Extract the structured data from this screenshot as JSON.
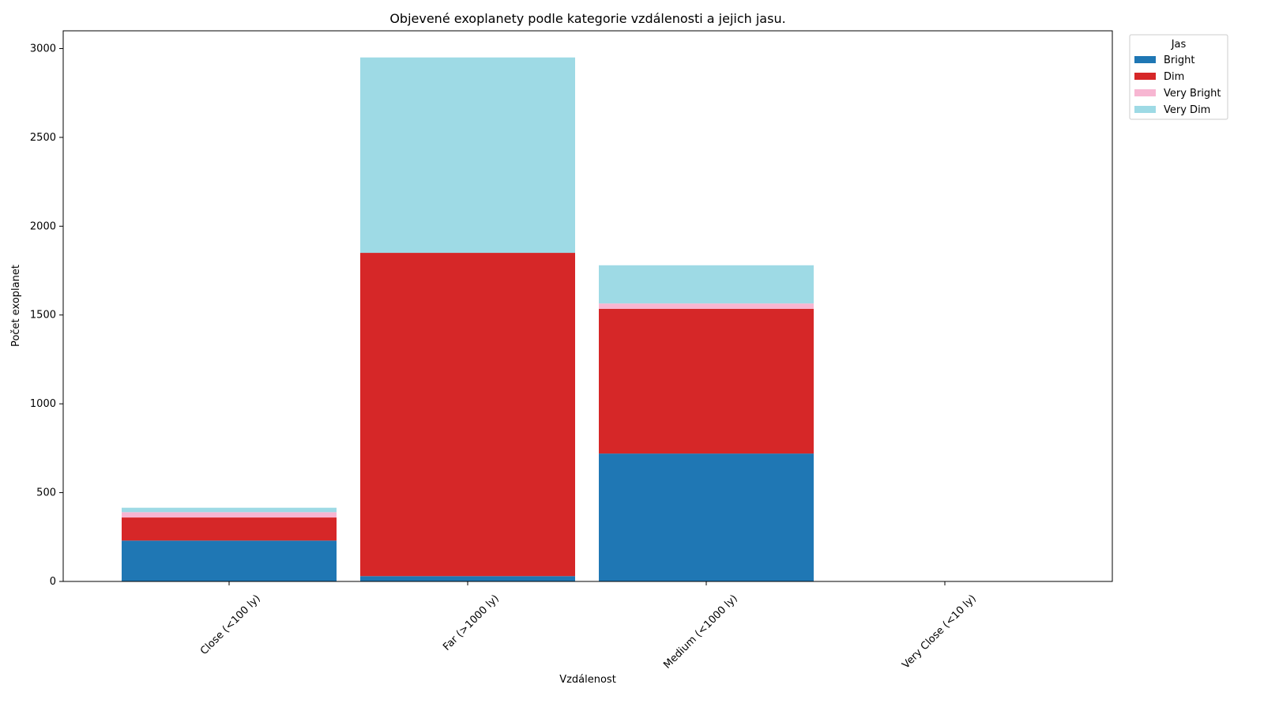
{
  "chart_data": {
    "type": "bar",
    "stacked": true,
    "title": "Objevené exoplanety podle kategorie vzdálenosti a jejich jasu.",
    "xlabel": "Vzdálenost",
    "ylabel": "Počet exoplanet",
    "categories": [
      "Close (<100 ly)",
      "Far (>1000 ly)",
      "Medium (<1000 ly)",
      "Very Close (<10 ly)"
    ],
    "ylim": [
      0,
      3100
    ],
    "yticks": [
      0,
      500,
      1000,
      1500,
      2000,
      2500,
      3000
    ],
    "grid": false,
    "legend": {
      "title": "Jas",
      "placement": "outside top-right"
    },
    "series": [
      {
        "name": "Bright",
        "color": "#1f77b4",
        "values": [
          230,
          30,
          720,
          0
        ]
      },
      {
        "name": "Dim",
        "color": "#d62728",
        "values": [
          130,
          1820,
          815,
          0
        ]
      },
      {
        "name": "Very Bright",
        "color": "#f7b6d2",
        "values": [
          30,
          0,
          30,
          0
        ]
      },
      {
        "name": "Very Dim",
        "color": "#9edae5",
        "values": [
          25,
          1100,
          215,
          0
        ]
      }
    ]
  }
}
